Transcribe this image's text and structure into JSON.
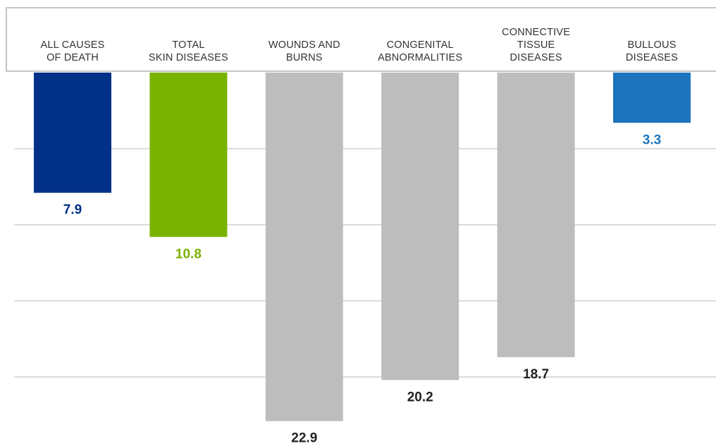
{
  "chart_data": {
    "type": "bar",
    "orientation": "downward",
    "categories": [
      [
        "ALL CAUSES",
        "OF DEATH"
      ],
      [
        "TOTAL",
        "SKIN DISEASES"
      ],
      [
        "WOUNDS AND",
        "BURNS"
      ],
      [
        "CONGENITAL",
        "ABNORMALITIES"
      ],
      [
        "CONNECTIVE",
        "TISSUE",
        "DISEASES"
      ],
      [
        "BULLOUS",
        "DISEASES"
      ]
    ],
    "values": [
      7.9,
      10.8,
      22.9,
      20.2,
      18.7,
      3.3
    ],
    "value_labels": [
      "7.9",
      "10.8",
      "22.9",
      "20.2",
      "18.7",
      "3.3"
    ],
    "ylim": [
      0,
      25
    ],
    "gridlines": [
      5,
      10,
      15,
      20
    ],
    "grid": true,
    "legend": "none",
    "title": "",
    "xlabel": "",
    "ylabel": ""
  },
  "colors": {
    "bars": [
      "#003087",
      "#7ab200",
      "#bdbdbd",
      "#bdbdbd",
      "#bdbdbd",
      "#1c75bc"
    ],
    "labels": [
      "#003087",
      "#7ab200",
      "#222222",
      "#222222",
      "#222222",
      "#1c75bc"
    ],
    "grid": "#c8c8c8",
    "header_border": "#b0b0b0"
  }
}
